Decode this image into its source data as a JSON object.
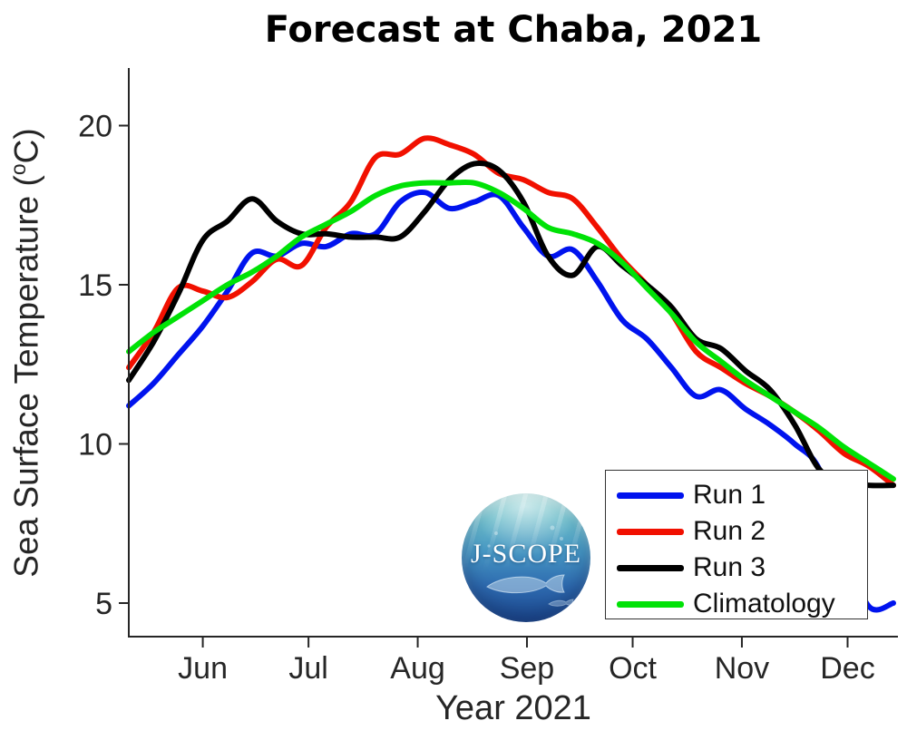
{
  "title": "Forecast at Chaba, 2021",
  "logo": {
    "text": "J-SCOPE"
  },
  "chart_data": {
    "type": "line",
    "title": "Forecast at Chaba, 2021",
    "xlabel": "Year 2021",
    "ylabel": "Sea Surface Temperature (°C)",
    "ylabel_parts": {
      "prefix": "Sea Surface Temperature (",
      "sup": "o",
      "suffix": "C)"
    },
    "grid": false,
    "legend_position": "lower right",
    "ylim": [
      4,
      21.8
    ],
    "yticks": [
      5,
      10,
      15,
      20
    ],
    "xticks": [
      {
        "label": "Jun",
        "day": 21
      },
      {
        "label": "Jul",
        "day": 51
      },
      {
        "label": "Aug",
        "day": 82
      },
      {
        "label": "Sep",
        "day": 113
      },
      {
        "label": "Oct",
        "day": 143
      },
      {
        "label": "Nov",
        "day": 174
      },
      {
        "label": "Dec",
        "day": 204
      }
    ],
    "x_unit": "days from series start (mid-May); month ticks mark the 1st",
    "x_days": [
      0,
      7,
      14,
      21,
      28,
      35,
      42,
      49,
      56,
      63,
      70,
      77,
      84,
      91,
      98,
      105,
      112,
      119,
      126,
      133,
      140,
      147,
      154,
      161,
      168,
      175,
      182,
      189,
      196,
      203,
      210,
      217
    ],
    "x_dates": [
      "May 11",
      "May 18",
      "May 25",
      "Jun 1",
      "Jun 8",
      "Jun 15",
      "Jun 22",
      "Jun 29",
      "Jul 6",
      "Jul 13",
      "Jul 20",
      "Jul 27",
      "Aug 3",
      "Aug 10",
      "Aug 17",
      "Aug 24",
      "Aug 31",
      "Sep 7",
      "Sep 14",
      "Sep 21",
      "Sep 28",
      "Oct 5",
      "Oct 12",
      "Oct 19",
      "Oct 26",
      "Nov 2",
      "Nov 9",
      "Nov 16",
      "Nov 23",
      "Nov 30",
      "Dec 7",
      "Dec 14"
    ],
    "series": [
      {
        "name": "Run 1",
        "color": "#0013ee",
        "values": [
          11.2,
          11.9,
          12.8,
          13.7,
          14.8,
          16.0,
          15.9,
          16.3,
          16.2,
          16.6,
          16.6,
          17.6,
          17.9,
          17.4,
          17.6,
          17.8,
          16.8,
          15.9,
          16.1,
          15.1,
          13.9,
          13.3,
          12.4,
          11.5,
          11.7,
          11.1,
          10.6,
          10.0,
          9.2,
          6.8,
          4.9,
          5.0
        ]
      },
      {
        "name": "Run 2",
        "color": "#f11000",
        "values": [
          12.4,
          13.5,
          14.9,
          14.8,
          14.6,
          15.1,
          15.8,
          15.6,
          16.8,
          17.6,
          19.0,
          19.1,
          19.6,
          19.4,
          19.1,
          18.5,
          18.3,
          17.9,
          17.7,
          16.8,
          15.8,
          15.0,
          14.1,
          12.9,
          12.4,
          11.9,
          11.5,
          11.0,
          10.4,
          9.7,
          9.3,
          8.7
        ]
      },
      {
        "name": "Run 3",
        "color": "#000000",
        "values": [
          12.0,
          13.2,
          14.7,
          16.4,
          17.0,
          17.7,
          17.0,
          16.6,
          16.6,
          16.5,
          16.5,
          16.5,
          17.3,
          18.3,
          18.8,
          18.6,
          17.6,
          15.9,
          15.3,
          16.2,
          15.6,
          15.0,
          14.3,
          13.3,
          13.0,
          12.3,
          11.7,
          10.6,
          9.2,
          8.8,
          8.7,
          8.7
        ]
      },
      {
        "name": "Climatology",
        "color": "#00e206",
        "values": [
          12.9,
          13.5,
          14.0,
          14.5,
          15.0,
          15.4,
          15.9,
          16.5,
          16.9,
          17.3,
          17.8,
          18.1,
          18.2,
          18.2,
          18.2,
          17.9,
          17.4,
          16.8,
          16.6,
          16.3,
          15.7,
          14.9,
          14.1,
          13.2,
          12.6,
          12.0,
          11.5,
          11.0,
          10.5,
          9.9,
          9.4,
          8.9
        ]
      }
    ]
  }
}
